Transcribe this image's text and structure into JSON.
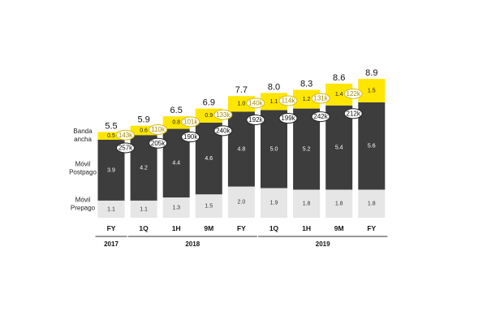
{
  "chart_data": {
    "type": "bar",
    "stacked": true,
    "categories": [
      "FY",
      "1Q",
      "1H",
      "9M",
      "FY",
      "1Q",
      "1H",
      "9M",
      "FY"
    ],
    "year_groups": [
      {
        "label": "2017",
        "start": 0,
        "end": 0
      },
      {
        "label": "2018",
        "start": 1,
        "end": 4
      },
      {
        "label": "2019",
        "start": 5,
        "end": 8
      }
    ],
    "series": [
      {
        "name": "Móvil Prepago",
        "color": "#e6e6e6",
        "text_color": "#333333",
        "values": [
          1.1,
          1.1,
          1.3,
          1.5,
          2.0,
          1.9,
          1.8,
          1.8,
          1.8
        ],
        "labels": [
          "1.1",
          "1.1",
          "1.3",
          "1.5",
          "2.0",
          "1.9",
          "1.8",
          "1.8",
          "1.8"
        ]
      },
      {
        "name": "Móvil Postpago",
        "color": "#3d3d3d",
        "text_color": "#ffffff",
        "values": [
          3.9,
          4.2,
          4.4,
          4.6,
          4.8,
          5.0,
          5.2,
          5.4,
          5.6
        ],
        "labels": [
          "3.9",
          "4.2",
          "4.4",
          "4.6",
          "4.8",
          "5.0",
          "5.2",
          "5.4",
          "5.6"
        ]
      },
      {
        "name": "Banda ancha",
        "color": "#ffe600",
        "text_color": "#222222",
        "values": [
          0.5,
          0.6,
          0.8,
          0.9,
          1.0,
          1.1,
          1.2,
          1.4,
          1.5
        ],
        "labels": [
          "0.5",
          "0.6",
          "0.8",
          "0.9",
          "1.0",
          "1.1",
          "1.2",
          "1.4",
          "1.5"
        ]
      }
    ],
    "row_labels": [
      {
        "series": "Banda ancha",
        "lines": [
          "Banda",
          "ancha"
        ]
      },
      {
        "series": "Móvil Postpago",
        "lines": [
          "Móvil",
          "Postpago"
        ]
      },
      {
        "series": "Móvil Prepago",
        "lines": [
          "Móvil",
          "Prepago"
        ]
      }
    ],
    "totals": [
      5.5,
      5.9,
      6.5,
      6.9,
      7.7,
      8.0,
      8.3,
      8.6,
      8.9
    ],
    "total_labels": [
      "5.5",
      "5.9",
      "6.5",
      "6.9",
      "7.7",
      "8.0",
      "8.3",
      "8.6",
      "8.9"
    ],
    "net_adds_banda_ancha": [
      "143k",
      "110k",
      "101k",
      "133k",
      "140k",
      "114k",
      "131k",
      "122k",
      null
    ],
    "net_adds_postpago": [
      "257k",
      "205k",
      "190k",
      "240k",
      "192k",
      "199k",
      "242k",
      "212k",
      null
    ],
    "ylim": [
      0,
      9.5
    ],
    "colors": {
      "yellow_oval_stroke": "#d9b800",
      "yellow_oval_text": "#a68a00",
      "dark_oval_stroke": "#222222",
      "dark_oval_text": "#111111",
      "axis_line": "#333333"
    },
    "grid": false,
    "legend": "left-row-labels"
  }
}
